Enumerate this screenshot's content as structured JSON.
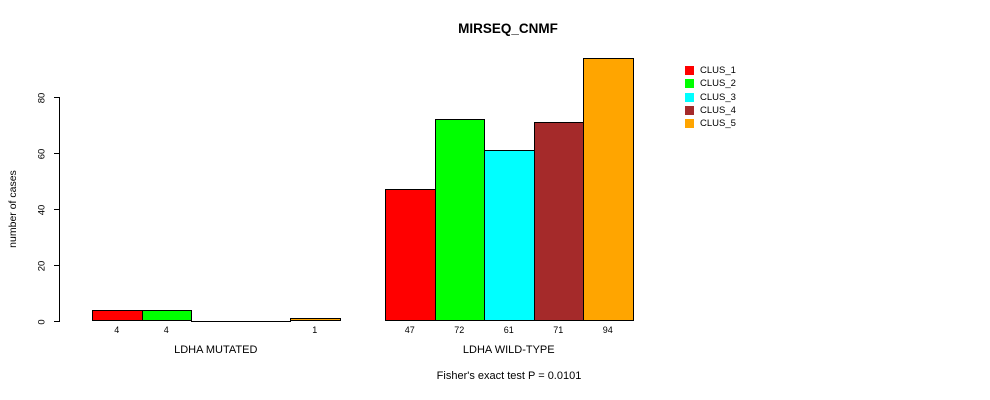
{
  "chart_data": {
    "type": "bar",
    "title": "MIRSEQ_CNMF",
    "ylabel": "number of cases",
    "caption": "Fisher's exact test P = 0.0101",
    "y_ticks": [
      0,
      20,
      40,
      60,
      80
    ],
    "ylim": [
      0,
      95
    ],
    "grid": false,
    "legend_position": "right-outside-top",
    "categories": [
      "LDHA MUTATED",
      "LDHA WILD-TYPE"
    ],
    "series": [
      {
        "name": "CLUS_1",
        "color": "#FF0000",
        "values": [
          4,
          47
        ]
      },
      {
        "name": "CLUS_2",
        "color": "#00FF00",
        "values": [
          4,
          72
        ]
      },
      {
        "name": "CLUS_3",
        "color": "#00FFFF",
        "values": [
          0,
          61
        ]
      },
      {
        "name": "CLUS_4",
        "color": "#A52A2A",
        "values": [
          0,
          71
        ]
      },
      {
        "name": "CLUS_5",
        "color": "#FFA500",
        "values": [
          1,
          94
        ]
      }
    ],
    "bar_value_labels": [
      [
        "4",
        "4",
        "",
        "",
        "1"
      ],
      [
        "47",
        "72",
        "61",
        "71",
        "94"
      ]
    ]
  }
}
